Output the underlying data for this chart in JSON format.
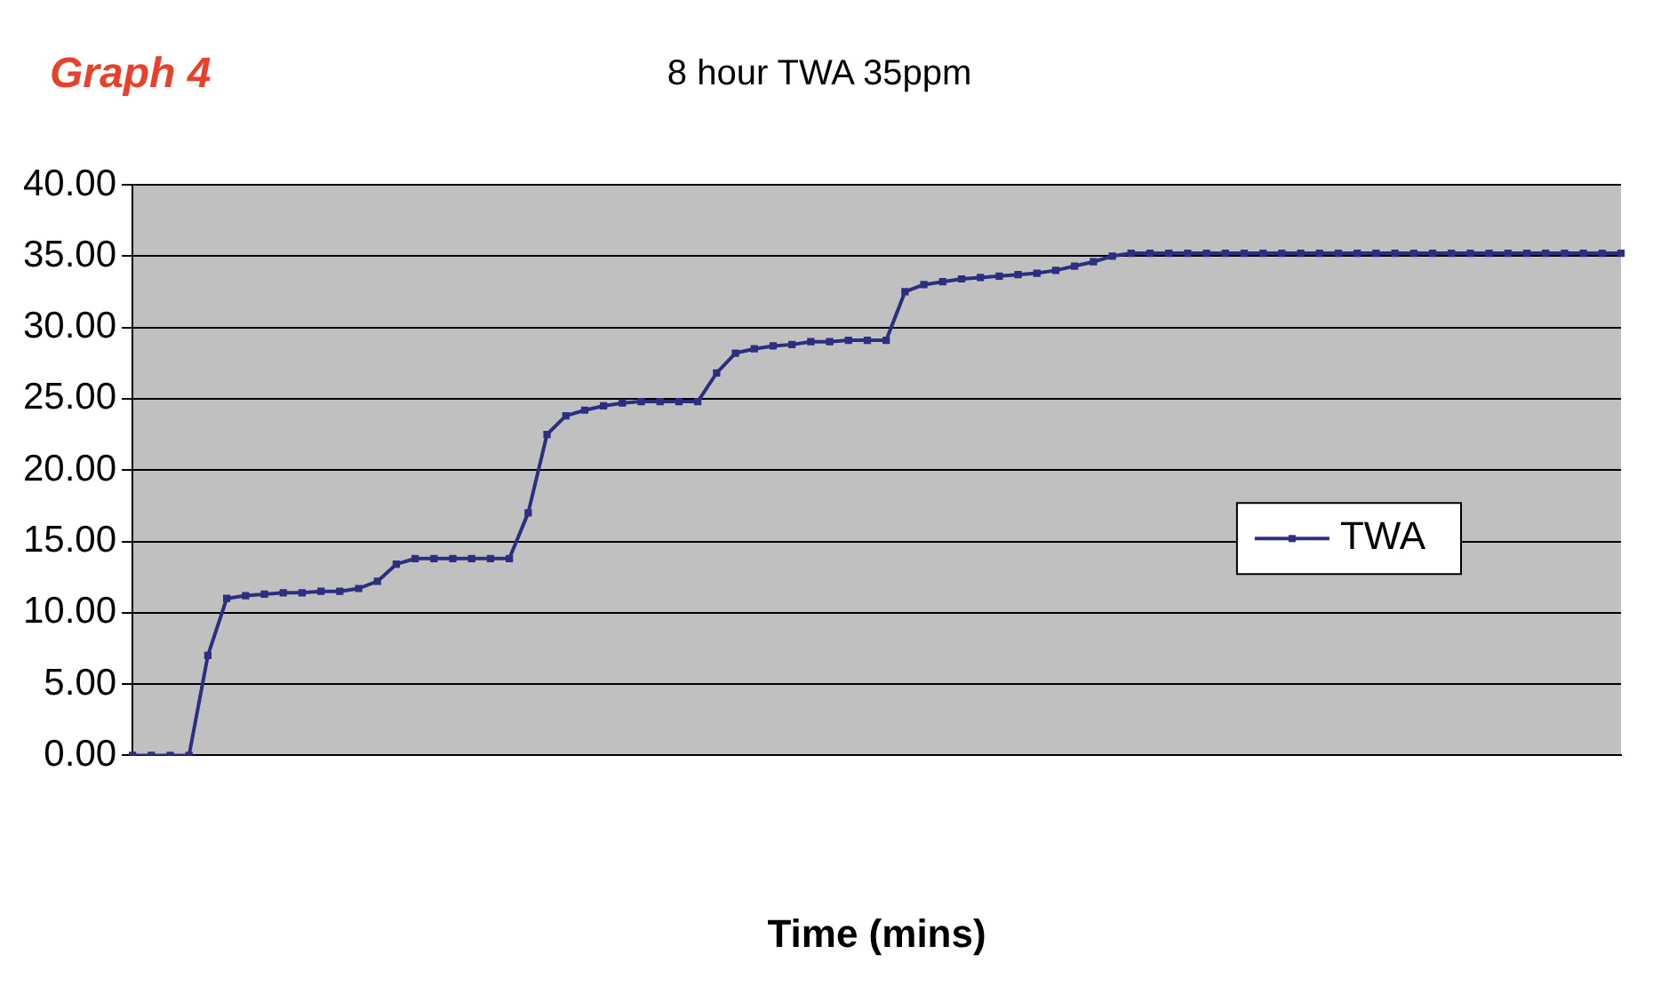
{
  "chart_data": {
    "type": "line",
    "title": "8 hour TWA 35ppm",
    "xlabel": "Time (mins)",
    "annotations": [
      "Graph 4"
    ],
    "categories": [
      null,
      null,
      null,
      null,
      null,
      null,
      null,
      null,
      null,
      null,
      null,
      null,
      null,
      null,
      null,
      null,
      null,
      null,
      null,
      null,
      null,
      null,
      null,
      null,
      null,
      null,
      null,
      null,
      null,
      null,
      null,
      null,
      null,
      null,
      null,
      null,
      null,
      null,
      null,
      null,
      null,
      null,
      null,
      null,
      null,
      null,
      null,
      null,
      null,
      null,
      null,
      null,
      null,
      null,
      null,
      null,
      null,
      null,
      null,
      null,
      null,
      null,
      null,
      null,
      null,
      null,
      null,
      null,
      null,
      null,
      null,
      null,
      null,
      null,
      null,
      null,
      null,
      null,
      null,
      null
    ],
    "series": [
      {
        "name": "TWA",
        "color": "#2e2e80",
        "values": [
          0,
          0,
          0,
          0,
          7,
          11,
          11.2,
          11.3,
          11.4,
          11.4,
          11.5,
          11.5,
          11.7,
          12.2,
          13.4,
          13.8,
          13.8,
          13.8,
          13.8,
          13.8,
          13.8,
          17,
          22.5,
          23.8,
          24.2,
          24.5,
          24.7,
          24.8,
          24.8,
          24.8,
          24.8,
          26.8,
          28.2,
          28.5,
          28.7,
          28.8,
          29,
          29,
          29.1,
          29.1,
          29.1,
          32.5,
          33,
          33.2,
          33.4,
          33.5,
          33.6,
          33.7,
          33.8,
          34,
          34.3,
          34.6,
          35,
          35.2,
          35.2,
          35.2,
          35.2,
          35.2,
          35.2,
          35.2,
          35.2,
          35.2,
          35.2,
          35.2,
          35.2,
          35.2,
          35.2,
          35.2,
          35.2,
          35.2,
          35.2,
          35.2,
          35.2,
          35.2,
          35.2,
          35.2,
          35.2,
          35.2,
          35.2,
          35.2
        ]
      }
    ],
    "ylim": [
      0,
      40
    ],
    "yticks": [
      {
        "value": 0,
        "label": "0.00"
      },
      {
        "value": 5,
        "label": "5.00"
      },
      {
        "value": 10,
        "label": "10.00"
      },
      {
        "value": 15,
        "label": "15.00"
      },
      {
        "value": 20,
        "label": "20.00"
      },
      {
        "value": 25,
        "label": "25.00"
      },
      {
        "value": 30,
        "label": "30.00"
      },
      {
        "value": 35,
        "label": "35.00"
      },
      {
        "value": 40,
        "label": "40.00"
      }
    ],
    "grid": "y",
    "legend": "right",
    "marker": "square",
    "line_style": "solid"
  }
}
